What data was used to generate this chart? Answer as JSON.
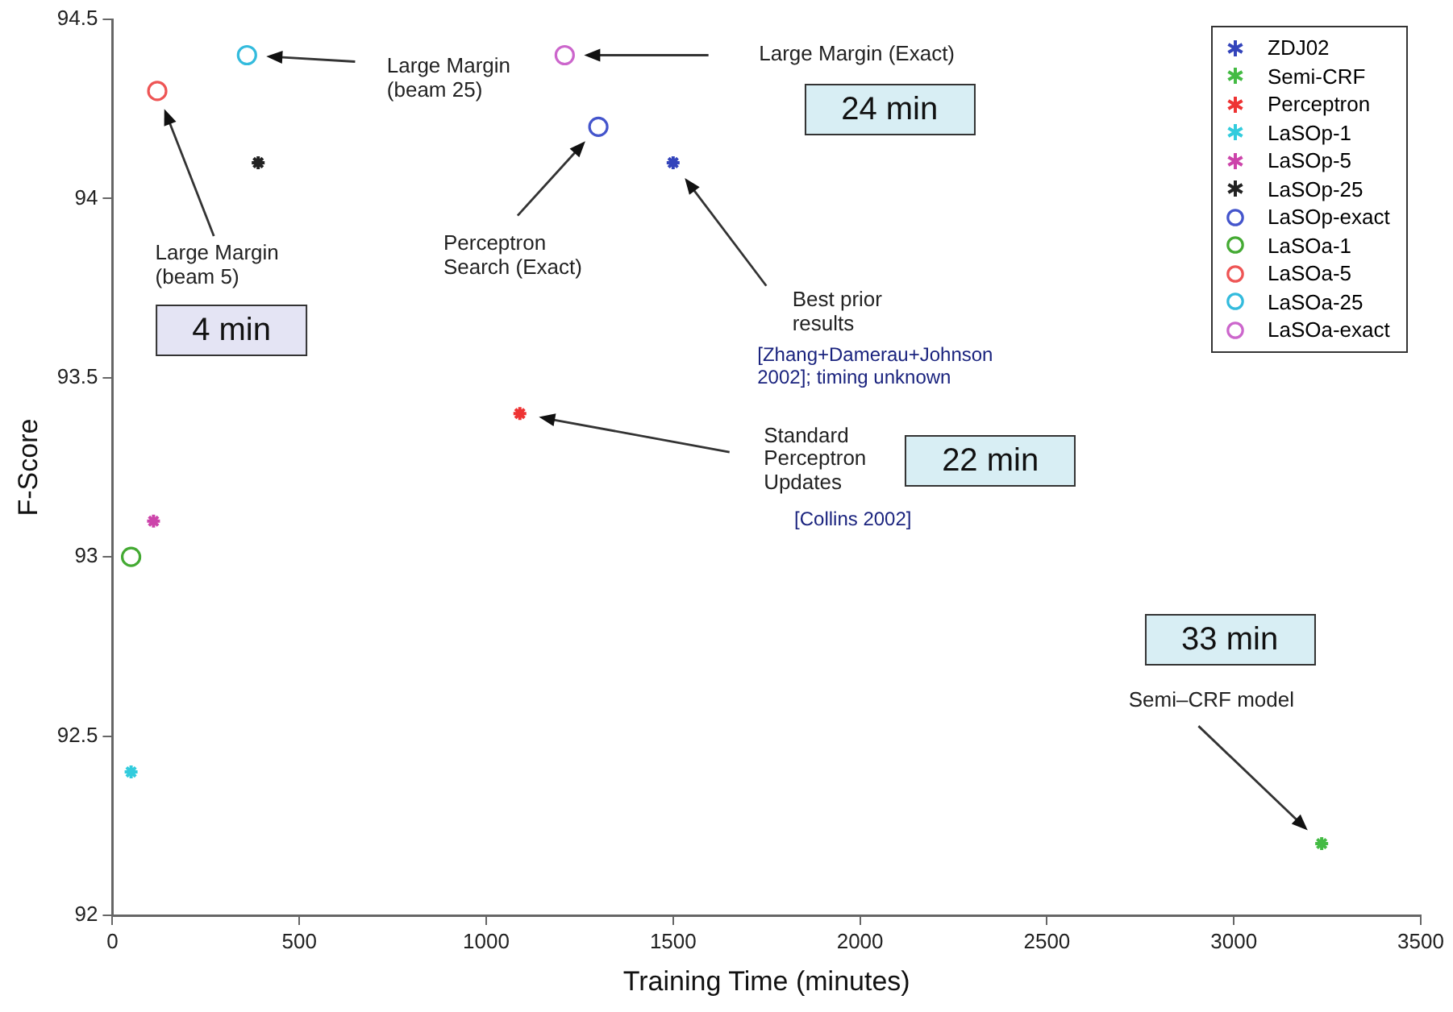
{
  "chart_data": {
    "type": "scatter",
    "xlabel": "Training Time (minutes)",
    "ylabel": "F-Score",
    "xlim": [
      0,
      3500
    ],
    "xticks": [
      0,
      500,
      1000,
      1500,
      2000,
      2500,
      3000,
      3500
    ],
    "ylim": [
      92,
      94.5
    ],
    "yticks": [
      92,
      92.5,
      93,
      93.5,
      94,
      94.5
    ],
    "grid": false,
    "legend": "top right",
    "series": [
      {
        "name": "ZDJ02",
        "color": "#3344bb",
        "marker": "cross",
        "x": [
          1500
        ],
        "values": [
          94.1
        ]
      },
      {
        "name": "Semi-CRF",
        "color": "#44bb44",
        "marker": "cross",
        "x": [
          3235
        ],
        "values": [
          92.2
        ]
      },
      {
        "name": "Perceptron",
        "color": "#ee3333",
        "marker": "cross",
        "x": [
          1090
        ],
        "values": [
          93.4
        ]
      },
      {
        "name": "LaSOp-1",
        "color": "#33ccdd",
        "marker": "cross",
        "x": [
          50
        ],
        "values": [
          92.4
        ]
      },
      {
        "name": "LaSOp-5",
        "color": "#cc44aa",
        "marker": "cross",
        "x": [
          110
        ],
        "values": [
          93.1
        ]
      },
      {
        "name": "LaSOp-25",
        "color": "#222222",
        "marker": "cross",
        "x": [
          390
        ],
        "values": [
          94.1
        ]
      },
      {
        "name": "LaSOp-exact",
        "color": "#4455cc",
        "marker": "circle",
        "x": [
          1300
        ],
        "values": [
          94.2
        ]
      },
      {
        "name": "LaSOa-1",
        "color": "#44aa33",
        "marker": "circle",
        "x": [
          50
        ],
        "values": [
          93.0
        ]
      },
      {
        "name": "LaSOa-5",
        "color": "#ee5555",
        "marker": "circle",
        "x": [
          120
        ],
        "values": [
          94.3
        ]
      },
      {
        "name": "LaSOa-25",
        "color": "#33bbdd",
        "marker": "circle",
        "x": [
          360
        ],
        "values": [
          94.4
        ]
      },
      {
        "name": "LaSOa-exact",
        "color": "#cc66cc",
        "marker": "circle",
        "x": [
          1210
        ],
        "values": [
          94.4
        ]
      }
    ],
    "annotations": [
      "Large Margin\n(beam 25)",
      "Large Margin (Exact)",
      "24 min",
      "Large Margin\n(beam 5)",
      "4 min",
      "Perceptron\nSearch (Exact)",
      "Best prior\nresults",
      "[Zhang+Damerau+Johnson\n2002]; timing unknown",
      "Standard\nPerceptron\nUpdates",
      "22 min",
      "[Collins 2002]",
      "33 min",
      "Semi–CRF model"
    ]
  }
}
